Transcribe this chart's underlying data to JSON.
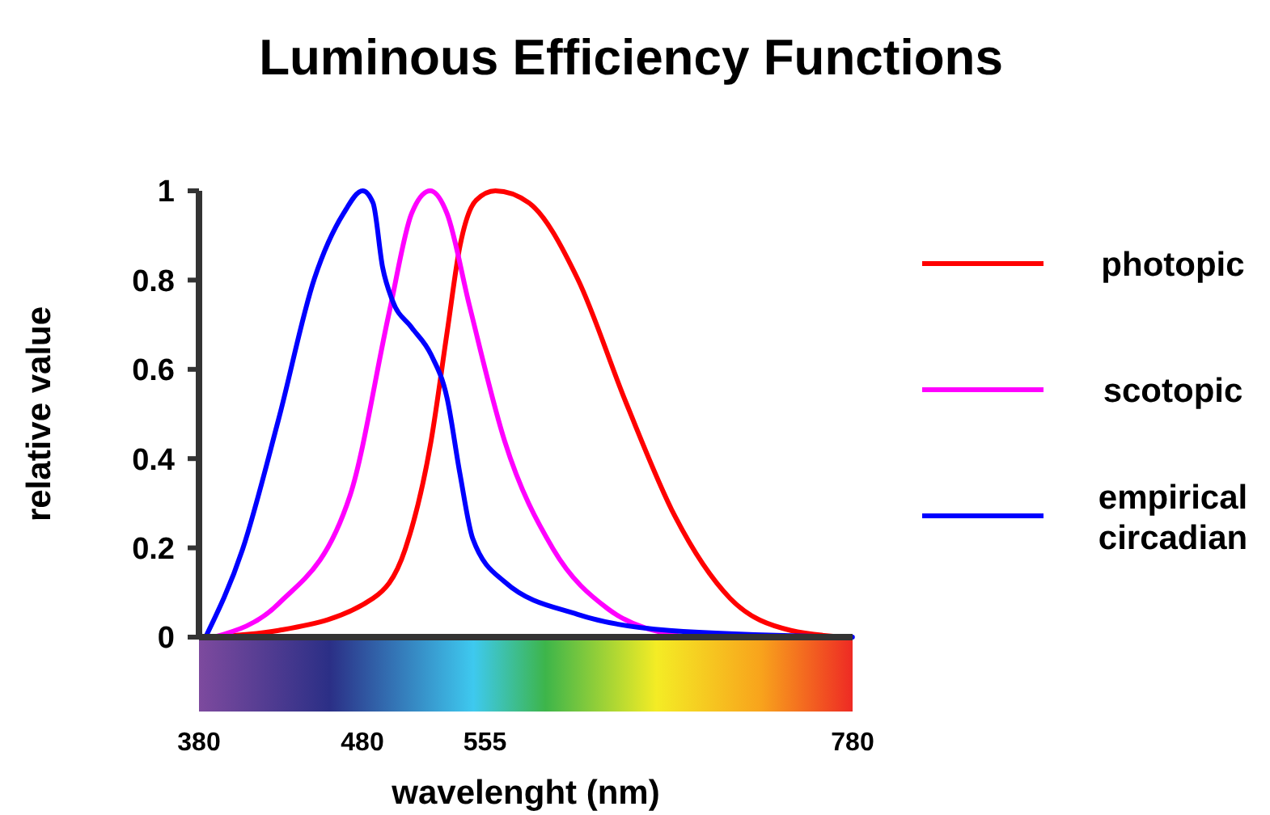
{
  "chart_data": {
    "type": "line",
    "title": "Luminous Efficiency Functions",
    "xlabel": "wavelenght (nm)",
    "ylabel": "relative value",
    "xlim": [
      380,
      780
    ],
    "xticks": [
      380,
      480,
      555,
      780
    ],
    "ylim": [
      0,
      1
    ],
    "yticks": [
      0,
      0.2,
      0.4,
      0.6,
      0.8,
      1
    ],
    "grid": false,
    "legend": "right",
    "marker": "none",
    "line_style": "solid",
    "series": [
      {
        "name": "photopic",
        "color": "#ff0000",
        "x": [
          384,
          428.7,
          486.5,
          506.2,
          522,
          531.8,
          539.7,
          549.6,
          561.4,
          581.9,
          611.7,
          641.5,
          671.4,
          705,
          742.2,
          775.8
        ],
        "values": [
          0,
          0.015,
          0.087,
          0.197,
          0.439,
          0.682,
          0.876,
          0.979,
          1,
          0.973,
          0.803,
          0.524,
          0.27,
          0.087,
          0.015,
          0
        ]
      },
      {
        "name": "scotopic",
        "color": "#ff00ff",
        "x": [
          389.2,
          428.7,
          472.5,
          496.6,
          510.1,
          521.5,
          531.8,
          545.5,
          567,
          596.8,
          630.4,
          675
        ],
        "values": [
          0,
          0.075,
          0.318,
          0.731,
          0.949,
          1,
          0.949,
          0.743,
          0.44,
          0.197,
          0.063,
          0.002
        ]
      },
      {
        "name": "empirical circadian",
        "color": "#0000ff",
        "x": [
          384,
          406.7,
          428.7,
          450.6,
          468.4,
          480.2,
          486.5,
          492.4,
          498.3,
          510.1,
          522,
          531.8,
          539.7,
          547.5,
          567,
          611.7,
          667.7,
          779.9
        ],
        "values": [
          0,
          0.197,
          0.488,
          0.803,
          0.949,
          1,
          0.973,
          0.828,
          0.755,
          0.694,
          0.633,
          0.536,
          0.366,
          0.221,
          0.124,
          0.051,
          0.015,
          0
        ]
      }
    ]
  }
}
